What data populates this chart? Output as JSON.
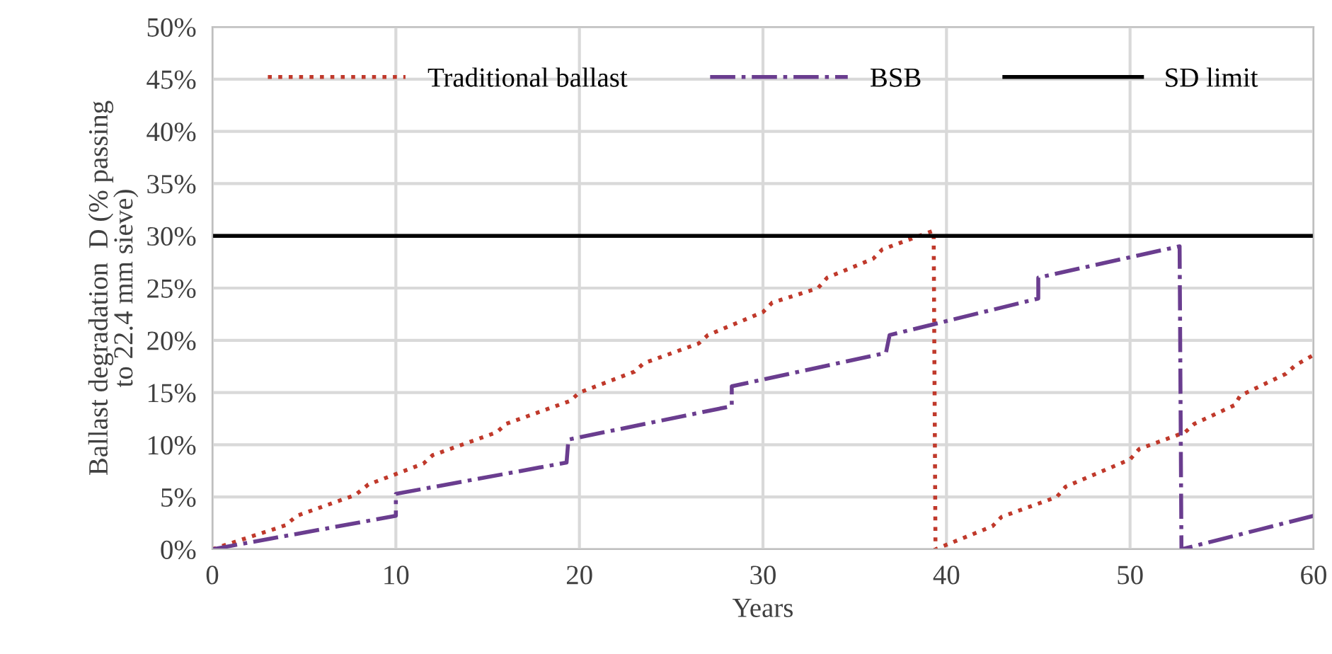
{
  "chart_data": {
    "type": "line",
    "xlabel": "Years",
    "ylabel": "Ballast degradation  D (% passing\nto 22.4 mm sieve)",
    "xlim": [
      0,
      60
    ],
    "xticks": [
      0,
      10,
      20,
      30,
      40,
      50,
      60
    ],
    "ylim": [
      0,
      50
    ],
    "yticks": [
      {
        "value": 0,
        "label": "0%"
      },
      {
        "value": 5,
        "label": "5%"
      },
      {
        "value": 10,
        "label": "10%"
      },
      {
        "value": 15,
        "label": "15%"
      },
      {
        "value": 20,
        "label": "20%"
      },
      {
        "value": 25,
        "label": "25%"
      },
      {
        "value": 30,
        "label": "30%"
      },
      {
        "value": 35,
        "label": "35%"
      },
      {
        "value": 40,
        "label": "40%"
      },
      {
        "value": 45,
        "label": "45%"
      },
      {
        "value": 50,
        "label": "50%"
      }
    ],
    "grid": true,
    "legend": "top",
    "marker": "none",
    "series": [
      {
        "name": "Traditional ballast",
        "color": "#c0392b",
        "line_style": "dotted",
        "x": [
          0,
          4,
          4.6,
          7.8,
          8.5,
          11.5,
          12,
          15.5,
          16,
          19.5,
          20,
          23,
          23.5,
          26.5,
          27,
          30,
          30.5,
          33,
          33.5,
          36,
          36.5,
          39.3,
          39.4,
          42.5,
          43,
          46,
          46.5,
          50,
          50.5,
          53,
          53.5,
          55.7,
          56,
          58.5,
          59,
          60
        ],
        "values": [
          0,
          2.3,
          3.2,
          5.2,
          6.2,
          8.2,
          9,
          11.2,
          12,
          14.2,
          15,
          17,
          17.8,
          19.7,
          20.5,
          22.7,
          23.6,
          25,
          26,
          27.8,
          28.7,
          30.5,
          0,
          2.2,
          3.1,
          5,
          6,
          8.6,
          9.6,
          11.2,
          12,
          13.8,
          14.7,
          16.8,
          17.6,
          18.6
        ]
      },
      {
        "name": "BSB",
        "color": "#6a3d8f",
        "line_style": "dashdot",
        "x": [
          0,
          10,
          10,
          19.3,
          19.4,
          28.3,
          28.3,
          36.7,
          36.9,
          45,
          45,
          52.7,
          52.8,
          60
        ],
        "values": [
          0,
          3.2,
          5.3,
          8.3,
          10.5,
          13.7,
          15.6,
          18.8,
          20.5,
          24,
          26,
          29,
          0,
          3.2
        ]
      },
      {
        "name": "SD limit",
        "color": "#000000",
        "line_style": "solid",
        "x": [
          0,
          60
        ],
        "values": [
          30,
          30
        ]
      }
    ]
  }
}
